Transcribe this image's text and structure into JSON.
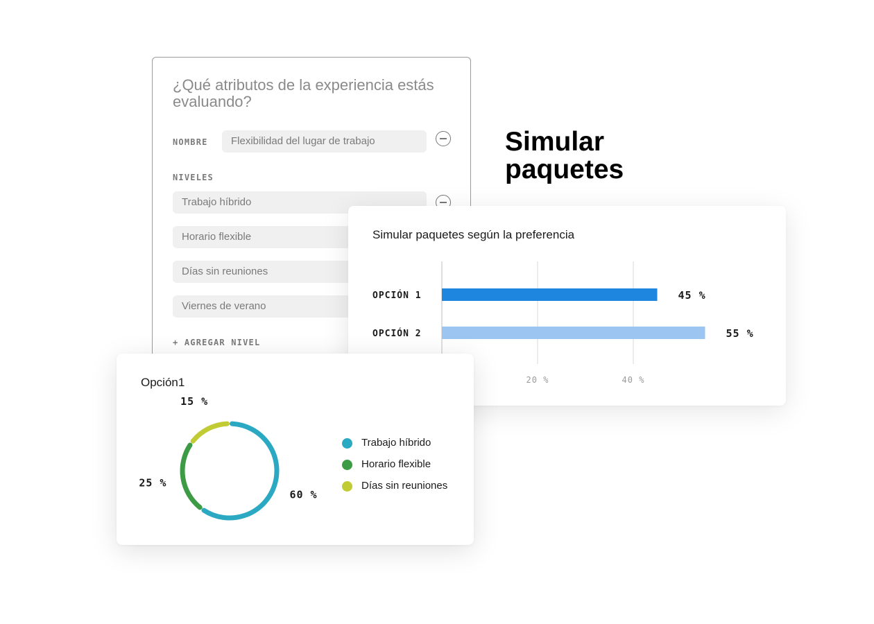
{
  "form": {
    "question": "¿Qué atributos de la experiencia estás evaluando?",
    "name_label": "NOMBRE",
    "name_value": "Flexibilidad del lugar de trabajo",
    "levels_label": "NIVELES",
    "levels": [
      "Trabajo híbrido",
      "Horario flexible",
      "Días sin reuniones",
      "Viernes de verano"
    ],
    "add_level": "+ AGREGAR NIVEL",
    "minus_icon": "minus-circle-icon"
  },
  "headline": "Simular paquetes",
  "colors": {
    "bar_option1": "#1f86e0",
    "bar_option2": "#9cc5f2",
    "hybrid": "#2ba9c2",
    "flexible": "#3e9b45",
    "no_meetings": "#c1cb34"
  },
  "chart_data": [
    {
      "type": "bar",
      "orientation": "horizontal",
      "title": "Simular paquetes según la preferencia",
      "categories": [
        "OPCIÓN 1",
        "OPCIÓN 2"
      ],
      "values": [
        45,
        55
      ],
      "value_labels": [
        "45 %",
        "55 %"
      ],
      "x_ticks": [
        20,
        40
      ],
      "x_tick_labels": [
        "20 %",
        "40 %"
      ],
      "xlim": [
        0,
        60
      ],
      "grid": true
    },
    {
      "type": "pie",
      "subtype": "donut",
      "title": "Opción1",
      "labels": [
        "Trabajo híbrido",
        "Horario flexible",
        "Días sin reuniones"
      ],
      "values": [
        60,
        25,
        15
      ],
      "value_labels": [
        "60 %",
        "25 %",
        "15 %"
      ],
      "legend": "right"
    }
  ]
}
